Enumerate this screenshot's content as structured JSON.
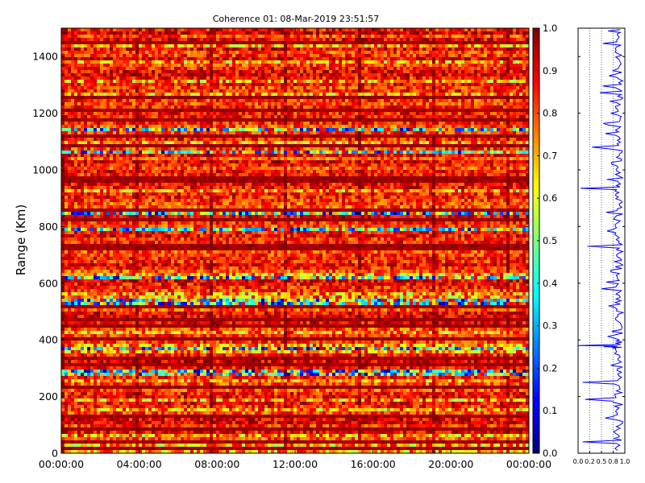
{
  "chart_data": [
    {
      "type": "heatmap",
      "title": "Coherence 01: 08-Mar-2019 23:51:57",
      "xlabel": "",
      "ylabel": "Range (Km)",
      "x_ticks": [
        "00:00:00",
        "04:00:00",
        "08:00:00",
        "12:00:00",
        "16:00:00",
        "20:00:00",
        "00:00:00"
      ],
      "y_ticks": [
        "0",
        "200",
        "400",
        "600",
        "800",
        "1000",
        "1200",
        "1400"
      ],
      "y_tick_values": [
        0,
        200,
        400,
        600,
        800,
        1000,
        1200,
        1400
      ],
      "ylim": [
        0,
        1500
      ],
      "xlim_hours": [
        0,
        24
      ],
      "value_range": [
        0.0,
        1.0
      ],
      "colormap": "jet",
      "colorbar_ticks": [
        "0.0",
        "0.1",
        "0.2",
        "0.3",
        "0.4",
        "0.5",
        "0.6",
        "0.7",
        "0.8",
        "0.9",
        "1.0"
      ],
      "colorbar_tick_values": [
        0.0,
        0.1,
        0.2,
        0.3,
        0.4,
        0.5,
        0.6,
        0.7,
        0.8,
        0.9,
        1.0
      ],
      "typical_value": 0.85,
      "low_coherence_ranges_km": [
        285,
        370,
        535,
        620,
        790,
        850,
        1060,
        1140
      ]
    },
    {
      "type": "line",
      "title": "",
      "series_color": "#0000ff",
      "x_ticks": [
        "0.0",
        "0.2",
        "0.5",
        "0.8",
        "1.0"
      ],
      "x_tick_values": [
        0.0,
        0.25,
        0.5,
        0.75,
        1.0
      ],
      "xlim": [
        0,
        1
      ],
      "ylim": [
        0,
        1500
      ],
      "grid": "vertical dotted",
      "series": [
        {
          "range_km": [
            10,
            40,
            70,
            100,
            130,
            160,
            190,
            220,
            250,
            280,
            310,
            340,
            370,
            380,
            400,
            430,
            460,
            490,
            520,
            550,
            580,
            610,
            640,
            670,
            700,
            730,
            760,
            790,
            820,
            850,
            880,
            910,
            935,
            960,
            990,
            1020,
            1050,
            1080,
            1110,
            1140,
            1170,
            1200,
            1230,
            1260,
            1290,
            1320,
            1350,
            1380,
            1410,
            1440,
            1470,
            1495
          ],
          "values": [
            0.85,
            0.1,
            0.8,
            0.9,
            0.75,
            0.88,
            0.15,
            0.82,
            0.1,
            0.85,
            0.7,
            0.9,
            0.8,
            0.0,
            0.88,
            0.72,
            0.9,
            0.85,
            0.65,
            0.9,
            0.5,
            0.88,
            0.7,
            0.9,
            0.82,
            0.2,
            0.88,
            0.75,
            0.9,
            0.6,
            0.88,
            0.8,
            0.05,
            0.85,
            0.9,
            0.72,
            0.88,
            0.3,
            0.9,
            0.8,
            0.88,
            0.7,
            0.9,
            0.85,
            0.8,
            0.88,
            0.75,
            0.9,
            0.85,
            0.92,
            0.88,
            0.9
          ]
        }
      ]
    }
  ]
}
